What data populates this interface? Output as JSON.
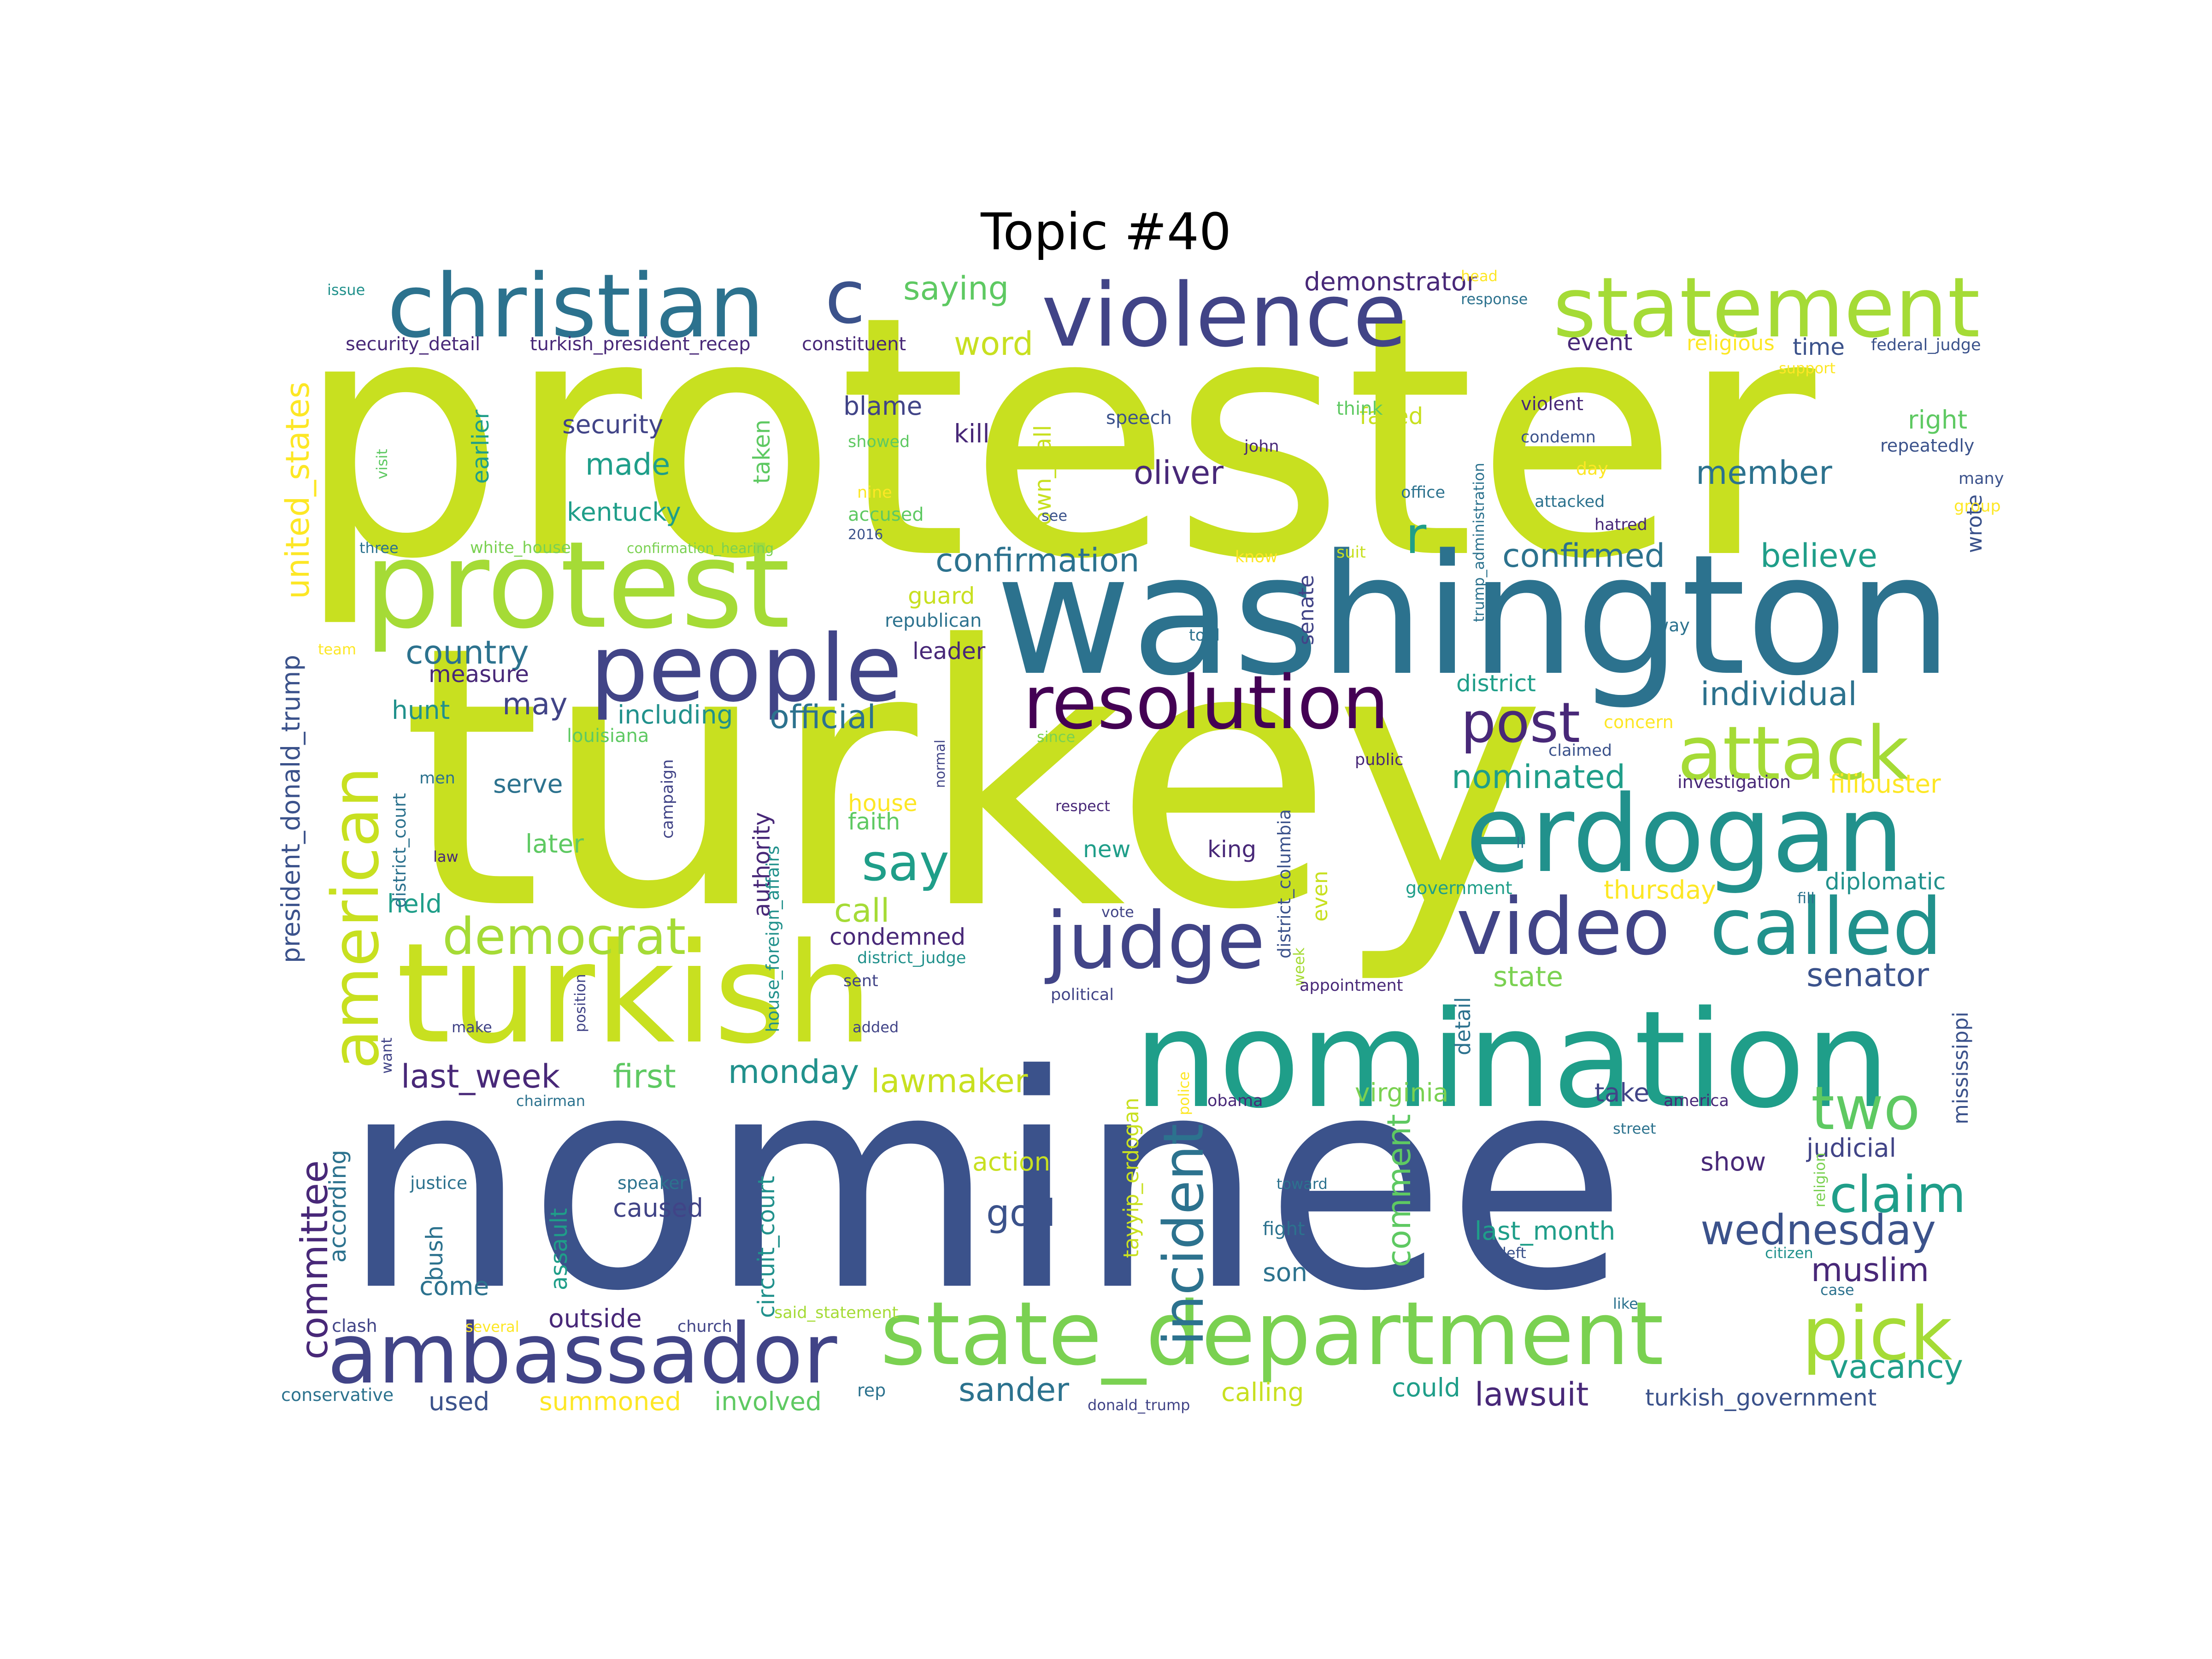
{
  "title": "Topic #40",
  "colors": {
    "lime": "#c8e020",
    "yellowgreen": "#a5db36",
    "green": "#5ec962",
    "lightgreen": "#7ad151",
    "teal": "#1f9e89",
    "tealdark": "#21918c",
    "blue": "#2c728e",
    "bluedark": "#3b528b",
    "indigo": "#414487",
    "purple": "#482878",
    "deep": "#440154",
    "yellow": "#fde725"
  },
  "words": [
    {
      "text": "protester",
      "c": "lime"
    },
    {
      "text": "turkey",
      "c": "lime"
    },
    {
      "text": "nominee",
      "c": "bluedark"
    },
    {
      "text": "washington",
      "c": "blue"
    },
    {
      "text": "nomination",
      "c": "teal"
    },
    {
      "text": "turkish",
      "c": "lime"
    },
    {
      "text": "protest",
      "c": "yellowgreen"
    },
    {
      "text": "erdogan",
      "c": "tealdark"
    },
    {
      "text": "state_department",
      "c": "lightgreen"
    },
    {
      "text": "christian",
      "c": "blue"
    },
    {
      "text": "c",
      "c": "bluedark"
    },
    {
      "text": "violence",
      "c": "indigo"
    },
    {
      "text": "statement",
      "c": "yellowgreen"
    },
    {
      "text": "people",
      "c": "indigo"
    },
    {
      "text": "resolution",
      "c": "deep"
    },
    {
      "text": "ambassador",
      "c": "indigo"
    },
    {
      "text": "video",
      "c": "indigo"
    },
    {
      "text": "called",
      "c": "tealdark"
    },
    {
      "text": "judge",
      "c": "indigo"
    },
    {
      "text": "american",
      "c": "lime"
    },
    {
      "text": "attack",
      "c": "yellowgreen"
    },
    {
      "text": "pick",
      "c": "yellowgreen"
    },
    {
      "text": "two",
      "c": "green"
    },
    {
      "text": "post",
      "c": "purple"
    },
    {
      "text": "claim",
      "c": "teal"
    },
    {
      "text": "incident",
      "c": "blue"
    },
    {
      "text": "democrat",
      "c": "yellowgreen"
    },
    {
      "text": "committee",
      "c": "purple"
    },
    {
      "text": "say",
      "c": "teal"
    },
    {
      "text": "wednesday",
      "c": "bluedark"
    },
    {
      "text": "r",
      "c": "teal"
    },
    {
      "text": "god",
      "c": "bluedark"
    },
    {
      "text": "comment",
      "c": "green"
    },
    {
      "text": "country",
      "c": "blue"
    },
    {
      "text": "official",
      "c": "blue"
    },
    {
      "text": "confirmed",
      "c": "blue"
    },
    {
      "text": "confirmation",
      "c": "blue"
    },
    {
      "text": "nominated",
      "c": "teal"
    },
    {
      "text": "individual",
      "c": "blue"
    },
    {
      "text": "oliver",
      "c": "purple"
    },
    {
      "text": "member",
      "c": "blue"
    },
    {
      "text": "believe",
      "c": "teal"
    },
    {
      "text": "vacancy",
      "c": "teal"
    },
    {
      "text": "lawsuit",
      "c": "purple"
    },
    {
      "text": "sander",
      "c": "blue"
    },
    {
      "text": "senator",
      "c": "bluedark"
    },
    {
      "text": "muslim",
      "c": "purple"
    },
    {
      "text": "last_week",
      "c": "purple"
    },
    {
      "text": "first",
      "c": "green"
    },
    {
      "text": "monday",
      "c": "tealdark"
    },
    {
      "text": "lawmaker",
      "c": "lime"
    },
    {
      "text": "united_states",
      "c": "yellow"
    },
    {
      "text": "president_donald_trump",
      "c": "bluedark"
    },
    {
      "text": "saying",
      "c": "green"
    },
    {
      "text": "word",
      "c": "lime"
    },
    {
      "text": "made",
      "c": "teal"
    },
    {
      "text": "security",
      "c": "indigo"
    },
    {
      "text": "kentucky",
      "c": "teal"
    },
    {
      "text": "may",
      "c": "indigo"
    },
    {
      "text": "hunt",
      "c": "tealdark"
    },
    {
      "text": "measure",
      "c": "purple"
    },
    {
      "text": "including",
      "c": "tealdark"
    },
    {
      "text": "serve",
      "c": "blue"
    },
    {
      "text": "later",
      "c": "green"
    },
    {
      "text": "held",
      "c": "teal"
    },
    {
      "text": "demonstrator",
      "c": "purple"
    },
    {
      "text": "event",
      "c": "purple"
    },
    {
      "text": "time",
      "c": "bluedark"
    },
    {
      "text": "right",
      "c": "green"
    },
    {
      "text": "faced",
      "c": "lime"
    },
    {
      "text": "blame",
      "c": "indigo"
    },
    {
      "text": "kill",
      "c": "purple"
    },
    {
      "text": "taken",
      "c": "green"
    },
    {
      "text": "earlier",
      "c": "teal"
    },
    {
      "text": "town_hall",
      "c": "lime"
    },
    {
      "text": "guard",
      "c": "lime"
    },
    {
      "text": "leader",
      "c": "purple"
    },
    {
      "text": "senate",
      "c": "indigo"
    },
    {
      "text": "district",
      "c": "teal"
    },
    {
      "text": "call",
      "c": "yellowgreen"
    },
    {
      "text": "house",
      "c": "yellow"
    },
    {
      "text": "faith",
      "c": "green"
    },
    {
      "text": "authority",
      "c": "purple"
    },
    {
      "text": "new",
      "c": "teal"
    },
    {
      "text": "king",
      "c": "purple"
    },
    {
      "text": "condemned",
      "c": "purple"
    },
    {
      "text": "thursday",
      "c": "yellow"
    },
    {
      "text": "diplomatic",
      "c": "tealdark"
    },
    {
      "text": "state",
      "c": "lightgreen"
    },
    {
      "text": "filibuster",
      "c": "yellow"
    },
    {
      "text": "even",
      "c": "lime"
    },
    {
      "text": "detail",
      "c": "blue"
    },
    {
      "text": "mississippi",
      "c": "bluedark"
    },
    {
      "text": "wrote",
      "c": "bluedark"
    },
    {
      "text": "virginia",
      "c": "lightgreen"
    },
    {
      "text": "take",
      "c": "indigo"
    },
    {
      "text": "judicial",
      "c": "indigo"
    },
    {
      "text": "show",
      "c": "purple"
    },
    {
      "text": "action",
      "c": "lime"
    },
    {
      "text": "according",
      "c": "blue"
    },
    {
      "text": "bush",
      "c": "blue"
    },
    {
      "text": "assault",
      "c": "teal"
    },
    {
      "text": "circuit_court",
      "c": "tealdark"
    },
    {
      "text": "caused",
      "c": "indigo"
    },
    {
      "text": "come",
      "c": "blue"
    },
    {
      "text": "outside",
      "c": "purple"
    },
    {
      "text": "involved",
      "c": "green"
    },
    {
      "text": "summoned",
      "c": "yellow"
    },
    {
      "text": "used",
      "c": "bluedark"
    },
    {
      "text": "calling",
      "c": "lime"
    },
    {
      "text": "could",
      "c": "teal"
    },
    {
      "text": "turkish_government",
      "c": "bluedark"
    },
    {
      "text": "tayyip_erdogan",
      "c": "lime"
    },
    {
      "text": "last_month",
      "c": "teal"
    },
    {
      "text": "son",
      "c": "blue"
    },
    {
      "text": "security_detail",
      "c": "purple"
    },
    {
      "text": "turkish_president_recep",
      "c": "purple"
    },
    {
      "text": "constituent",
      "c": "purple"
    },
    {
      "text": "religious",
      "c": "yellow"
    },
    {
      "text": "federal_judge",
      "c": "bluedark"
    },
    {
      "text": "issue",
      "c": "tealdark"
    },
    {
      "text": "speech",
      "c": "bluedark"
    },
    {
      "text": "showed",
      "c": "green"
    },
    {
      "text": "john",
      "c": "purple"
    },
    {
      "text": "think",
      "c": "green"
    },
    {
      "text": "violent",
      "c": "purple"
    },
    {
      "text": "condemn",
      "c": "bluedark"
    },
    {
      "text": "repeatedly",
      "c": "bluedark"
    },
    {
      "text": "many",
      "c": "bluedark"
    },
    {
      "text": "day",
      "c": "yellow"
    },
    {
      "text": "office",
      "c": "blue"
    },
    {
      "text": "attacked",
      "c": "blue"
    },
    {
      "text": "hatred",
      "c": "purple"
    },
    {
      "text": "group",
      "c": "yellow"
    },
    {
      "text": "nine",
      "c": "yellow"
    },
    {
      "text": "accused",
      "c": "green"
    },
    {
      "text": "2016",
      "c": "bluedark"
    },
    {
      "text": "see",
      "c": "bluedark"
    },
    {
      "text": "three",
      "c": "blue"
    },
    {
      "text": "white_house",
      "c": "lightgreen"
    },
    {
      "text": "confirmation_hearing",
      "c": "lightgreen"
    },
    {
      "text": "know",
      "c": "yellow"
    },
    {
      "text": "suit",
      "c": "lime"
    },
    {
      "text": "trump_administration",
      "c": "blue"
    },
    {
      "text": "republican",
      "c": "blue"
    },
    {
      "text": "told",
      "c": "blue"
    },
    {
      "text": "way",
      "c": "blue"
    },
    {
      "text": "team",
      "c": "yellow"
    },
    {
      "text": "louisiana",
      "c": "green"
    },
    {
      "text": "since",
      "c": "lightgreen"
    },
    {
      "text": "concern",
      "c": "yellow"
    },
    {
      "text": "claimed",
      "c": "bluedark"
    },
    {
      "text": "men",
      "c": "blue"
    },
    {
      "text": "district_court",
      "c": "blue"
    },
    {
      "text": "campaign",
      "c": "indigo"
    },
    {
      "text": "normal",
      "c": "indigo"
    },
    {
      "text": "public",
      "c": "purple"
    },
    {
      "text": "investigation",
      "c": "purple"
    },
    {
      "text": "respect",
      "c": "purple"
    },
    {
      "text": "law",
      "c": "purple"
    },
    {
      "text": "house_foreign_affairs",
      "c": "tealdark"
    },
    {
      "text": "district_columbia",
      "c": "bluedark"
    },
    {
      "text": "government",
      "c": "teal"
    },
    {
      "text": "ll",
      "c": "blue"
    },
    {
      "text": "fill",
      "c": "blue"
    },
    {
      "text": "vote",
      "c": "indigo"
    },
    {
      "text": "district_judge",
      "c": "tealdark"
    },
    {
      "text": "week",
      "c": "yellowgreen"
    },
    {
      "text": "sent",
      "c": "indigo"
    },
    {
      "text": "political",
      "c": "indigo"
    },
    {
      "text": "appointment",
      "c": "purple"
    },
    {
      "text": "position",
      "c": "indigo"
    },
    {
      "text": "make",
      "c": "indigo"
    },
    {
      "text": "added",
      "c": "indigo"
    },
    {
      "text": "want",
      "c": "indigo"
    },
    {
      "text": "chairman",
      "c": "blue"
    },
    {
      "text": "obama",
      "c": "purple"
    },
    {
      "text": "police",
      "c": "yellow"
    },
    {
      "text": "america",
      "c": "purple"
    },
    {
      "text": "street",
      "c": "blue"
    },
    {
      "text": "justice",
      "c": "blue"
    },
    {
      "text": "speaker",
      "c": "blue"
    },
    {
      "text": "toward",
      "c": "blue"
    },
    {
      "text": "religion",
      "c": "lightgreen"
    },
    {
      "text": "fight",
      "c": "blue"
    },
    {
      "text": "left",
      "c": "bluedark"
    },
    {
      "text": "citizen",
      "c": "tealdark"
    },
    {
      "text": "said_statement",
      "c": "yellowgreen"
    },
    {
      "text": "case",
      "c": "blue"
    },
    {
      "text": "like",
      "c": "blue"
    },
    {
      "text": "clash",
      "c": "indigo"
    },
    {
      "text": "several",
      "c": "yellow"
    },
    {
      "text": "church",
      "c": "indigo"
    },
    {
      "text": "rep",
      "c": "blue"
    },
    {
      "text": "donald_trump",
      "c": "indigo"
    },
    {
      "text": "conservative",
      "c": "blue"
    },
    {
      "text": "head",
      "c": "yellow"
    },
    {
      "text": "response",
      "c": "blue"
    },
    {
      "text": "support",
      "c": "yellow"
    },
    {
      "text": "visit",
      "c": "green"
    }
  ]
}
